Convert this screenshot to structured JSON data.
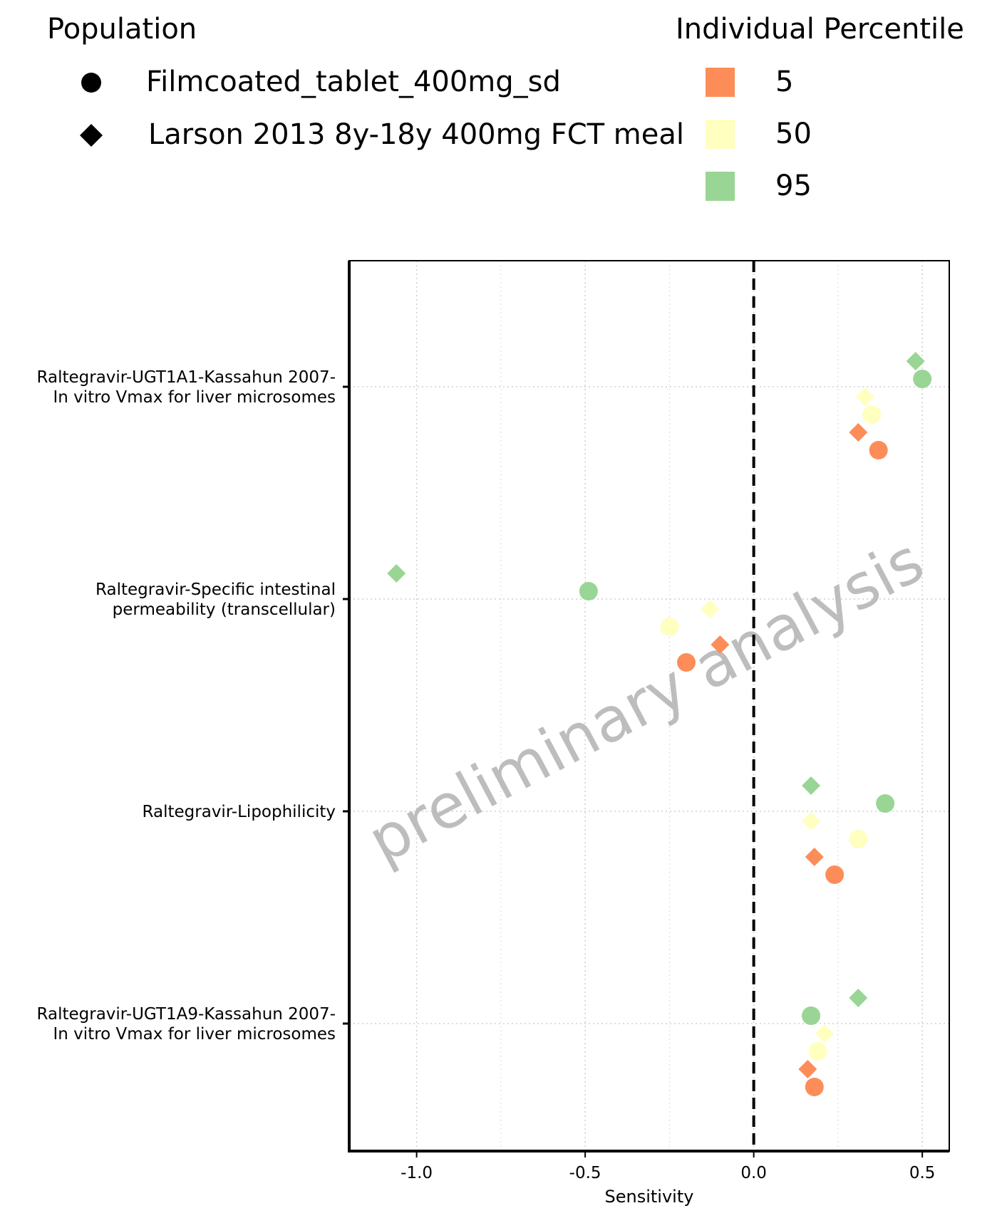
{
  "legend": {
    "population_title": "Population",
    "populations": [
      {
        "label": "Filmcoated_tablet_400mg_sd",
        "shape": "circle"
      },
      {
        "label": "Larson 2013 8y-18y 400mg FCT meal",
        "shape": "diamond"
      }
    ],
    "percentile_title": "Individual Percentile",
    "percentiles": [
      {
        "label": "5",
        "color": "#FC8D59"
      },
      {
        "label": "50",
        "color": "#FFFFBF"
      },
      {
        "label": "95",
        "color": "#99D594"
      }
    ]
  },
  "watermark": "preliminary analysis",
  "chart_data": {
    "type": "scatter",
    "xlabel": "Sensitivity",
    "xlim": [
      -1.2,
      0.58
    ],
    "x_ticks": [
      "-1.0",
      "-0.5",
      "0.0",
      "0.5"
    ],
    "x_tick_values": [
      -1.0,
      -0.5,
      0.0,
      0.5
    ],
    "reference_line": 0.0,
    "grid": true,
    "categories": [
      "Raltegravir-UGT1A1-Kassahun 2007-\nIn vitro Vmax for liver microsomes",
      "Raltegravir-Specific intestinal\npermeability (transcellular)",
      "Raltegravir-Lipophilicity",
      "Raltegravir-UGT1A9-Kassahun 2007-\nIn vitro Vmax for liver microsomes"
    ],
    "series": [
      {
        "population": "Larson 2013 8y-18y 400mg FCT meal",
        "percentile": "95",
        "values": [
          0.48,
          -1.06,
          0.17,
          0.31
        ]
      },
      {
        "population": "Filmcoated_tablet_400mg_sd",
        "percentile": "95",
        "values": [
          0.5,
          -0.49,
          0.39,
          0.17
        ]
      },
      {
        "population": "Larson 2013 8y-18y 400mg FCT meal",
        "percentile": "50",
        "values": [
          0.33,
          -0.13,
          0.17,
          0.21
        ]
      },
      {
        "population": "Filmcoated_tablet_400mg_sd",
        "percentile": "50",
        "values": [
          0.35,
          -0.25,
          0.31,
          0.19
        ]
      },
      {
        "population": "Larson 2013 8y-18y 400mg FCT meal",
        "percentile": "5",
        "values": [
          0.31,
          -0.1,
          0.18,
          0.16
        ]
      },
      {
        "population": "Filmcoated_tablet_400mg_sd",
        "percentile": "5",
        "values": [
          0.37,
          -0.2,
          0.24,
          0.18
        ]
      }
    ]
  }
}
